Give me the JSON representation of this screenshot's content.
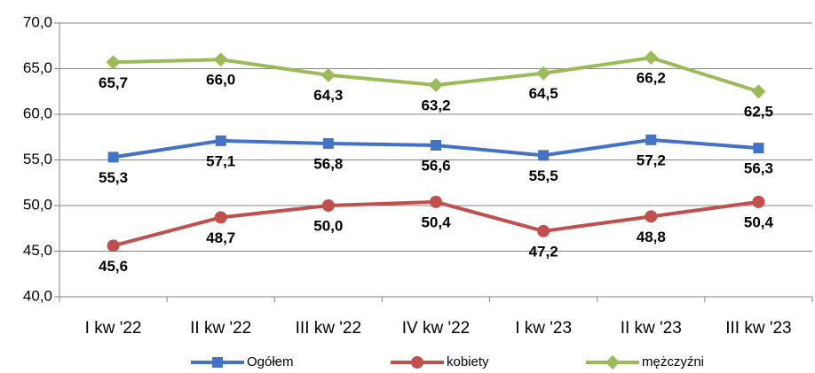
{
  "chart_data": {
    "type": "line",
    "categories": [
      "I kw '22",
      "II kw '22",
      "III kw '22",
      "IV kw '22",
      "I kw '23",
      "II kw '23",
      "III kw '23"
    ],
    "series": [
      {
        "name": "Ogółem",
        "color": "#4472c4",
        "marker": "square",
        "values": [
          55.3,
          57.1,
          56.8,
          56.6,
          55.5,
          57.2,
          56.3
        ],
        "value_labels": [
          "55,3",
          "57,1",
          "56,8",
          "56,6",
          "55,5",
          "57,2",
          "56,3"
        ]
      },
      {
        "name": "kobiety",
        "color": "#c0504d",
        "marker": "circle",
        "values": [
          45.6,
          48.7,
          50.0,
          50.4,
          47.2,
          48.8,
          50.4
        ],
        "value_labels": [
          "45,6",
          "48,7",
          "50,0",
          "50,4",
          "47,2",
          "48,8",
          "50,4"
        ]
      },
      {
        "name": "mężczyźni",
        "color": "#9bbb59",
        "marker": "diamond",
        "values": [
          65.7,
          66.0,
          64.3,
          63.2,
          64.5,
          66.2,
          62.5
        ],
        "value_labels": [
          "65,7",
          "66,0",
          "64,3",
          "63,2",
          "64,5",
          "66,2",
          "62,5"
        ]
      }
    ],
    "ylim": [
      40,
      70
    ],
    "yticks": [
      {
        "value": 40,
        "label": "40,0"
      },
      {
        "value": 45,
        "label": "45,0"
      },
      {
        "value": 50,
        "label": "50,0"
      },
      {
        "value": 55,
        "label": "55,0"
      },
      {
        "value": 60,
        "label": "60,0"
      },
      {
        "value": 65,
        "label": "65,0"
      },
      {
        "value": 70,
        "label": "70,0"
      }
    ],
    "grid": true,
    "legend": "bottom"
  }
}
